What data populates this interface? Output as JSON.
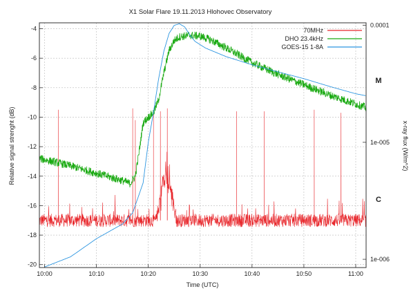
{
  "chart_data": {
    "type": "line",
    "title": "X1 Solar Flare 19.11.2013 Hlohovec Observatory",
    "xlabel": "Time (UTC)",
    "ylabel": "Relative signal strenght (dB)",
    "y2label": "x-ray flux (W/m^2)",
    "x_range": [
      "09:59",
      "11:02"
    ],
    "ylim": [
      -20.2,
      -3.6
    ],
    "y2lim": [
      8.5e-07,
      0.000105
    ],
    "y2_scale": "log",
    "x_ticks": [
      "10:00",
      "10:10",
      "10:20",
      "10:30",
      "10:40",
      "10:50",
      "11:00"
    ],
    "y_ticks": [
      "-4",
      "-6",
      "-8",
      "-10",
      "-12",
      "-14",
      "-16",
      "-18",
      "-20"
    ],
    "y2_ticks": [
      "0.0001",
      "1e-005",
      "1e-006"
    ],
    "flare_classes": [
      "M",
      "C"
    ],
    "grid": true,
    "legend_position": "top-right",
    "series": [
      {
        "name": "70MHz",
        "axis": "left",
        "color": "#e8262b",
        "baseline": -17.0,
        "noise_db": 0.45,
        "spikes": [
          {
            "time": "10:02:40",
            "value": -9.5
          },
          {
            "time": "10:17:00",
            "value": -9.4
          },
          {
            "time": "10:17:30",
            "value": -10.2
          },
          {
            "time": "10:21:00",
            "value": -9.8
          },
          {
            "time": "10:22:20",
            "value": -9.6
          },
          {
            "time": "10:23:40",
            "value": -9.4
          },
          {
            "time": "10:37:00",
            "value": -9.6
          },
          {
            "time": "10:42:20",
            "value": -9.6
          },
          {
            "time": "10:52:00",
            "value": -9.5
          },
          {
            "time": "10:57:10",
            "value": -9.7
          }
        ],
        "burst": {
          "start": "10:21:30",
          "end": "10:25:30",
          "peak": -12.5
        }
      },
      {
        "name": "DHO 23.4kHz",
        "axis": "left",
        "color": "#1aaa12",
        "points": [
          [
            "09:59",
            -12.8
          ],
          [
            "10:05",
            -13.3
          ],
          [
            "10:10",
            -13.8
          ],
          [
            "10:15",
            -14.3
          ],
          [
            "10:16:30",
            -14.5
          ],
          [
            "10:17:30",
            -14.0
          ],
          [
            "10:18:10",
            -12.5
          ],
          [
            "10:19",
            -10.4
          ],
          [
            "10:20",
            -10.0
          ],
          [
            "10:21",
            -9.7
          ],
          [
            "10:22",
            -8.8
          ],
          [
            "10:23",
            -7.0
          ],
          [
            "10:24",
            -5.5
          ],
          [
            "10:25",
            -4.8
          ],
          [
            "10:26",
            -4.55
          ],
          [
            "10:28",
            -4.45
          ],
          [
            "10:30",
            -4.5
          ],
          [
            "10:32",
            -4.75
          ],
          [
            "10:35",
            -5.3
          ],
          [
            "10:40",
            -6.3
          ],
          [
            "10:45",
            -7.1
          ],
          [
            "10:50",
            -7.8
          ],
          [
            "10:55",
            -8.5
          ],
          [
            "11:00",
            -9.1
          ],
          [
            "11:02",
            -9.35
          ]
        ]
      },
      {
        "name": "GOES-15 1-8A",
        "axis": "right",
        "color": "#2b95e0",
        "points": [
          [
            "10:00",
            8.6e-07
          ],
          [
            "10:05",
            1.05e-06
          ],
          [
            "10:10",
            1.5e-06
          ],
          [
            "10:15",
            2e-06
          ],
          [
            "10:17",
            2.5e-06
          ],
          [
            "10:19",
            4.5e-06
          ],
          [
            "10:20",
            1e-05
          ],
          [
            "10:21",
            1.8e-05
          ],
          [
            "10:22",
            3.5e-05
          ],
          [
            "10:23",
            6e-05
          ],
          [
            "10:24",
            8.5e-05
          ],
          [
            "10:25",
            0.0001
          ],
          [
            "10:26",
            0.000103
          ],
          [
            "10:27",
            9.7e-05
          ],
          [
            "10:28",
            8.3e-05
          ],
          [
            "10:29",
            7.3e-05
          ],
          [
            "10:31",
            6.4e-05
          ],
          [
            "10:35",
            5.4e-05
          ],
          [
            "10:40",
            4.6e-05
          ],
          [
            "10:45",
            4e-05
          ],
          [
            "10:50",
            3.5e-05
          ],
          [
            "10:55",
            3e-05
          ],
          [
            "11:00",
            2.6e-05
          ],
          [
            "11:02",
            2.5e-05
          ]
        ]
      }
    ]
  }
}
